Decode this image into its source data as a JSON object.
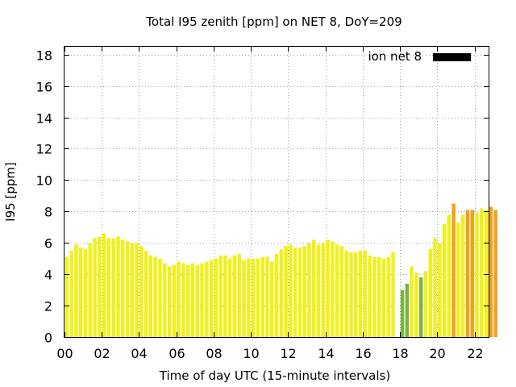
{
  "chart_data": {
    "type": "bar",
    "title": "Total I95 zenith [ppm] on NET 8, DoY=209",
    "xlabel": "Time of day UTC (15-minute intervals)",
    "ylabel": "I95 [ppm]",
    "xlim": [
      0,
      22.75
    ],
    "ylim": [
      0,
      18.5
    ],
    "x_ticks": [
      "00",
      "02",
      "04",
      "06",
      "08",
      "10",
      "12",
      "14",
      "16",
      "18",
      "20",
      "22"
    ],
    "y_ticks": [
      "0",
      "2",
      "4",
      "6",
      "8",
      "10",
      "12",
      "14",
      "16",
      "18"
    ],
    "grid": true,
    "legend": {
      "label": "ion net 8",
      "color": "#000000",
      "position": "top-right"
    },
    "bar_interval_hours": 0.25,
    "colors": {
      "low": "#7cb342",
      "mid": "#f0f020",
      "high": "#f2a11a"
    },
    "values": [
      5.1,
      5.5,
      5.9,
      5.7,
      5.6,
      6.0,
      6.3,
      6.4,
      6.6,
      6.3,
      6.3,
      6.4,
      6.2,
      6.1,
      6.0,
      6.0,
      5.8,
      5.5,
      5.2,
      5.1,
      5.0,
      4.7,
      4.5,
      4.6,
      4.8,
      4.7,
      4.6,
      4.7,
      4.6,
      4.7,
      4.8,
      4.9,
      5.0,
      5.2,
      5.2,
      5.0,
      5.2,
      5.3,
      4.9,
      5.0,
      5.0,
      5.0,
      5.1,
      5.1,
      4.8,
      5.3,
      5.6,
      5.8,
      5.9,
      5.7,
      5.7,
      5.8,
      6.0,
      6.2,
      5.9,
      6.0,
      6.2,
      6.1,
      5.9,
      5.8,
      5.5,
      5.4,
      5.4,
      5.5,
      5.5,
      5.2,
      5.1,
      5.1,
      5.0,
      5.1,
      5.4,
      0,
      3.0,
      3.4,
      4.5,
      4.1,
      3.8,
      4.2,
      5.6,
      6.3,
      6.0,
      7.2,
      7.8,
      8.5,
      7.3,
      7.8,
      8.1,
      8.1,
      7.9,
      8.2,
      8.1,
      8.3,
      8.1
    ],
    "bar_colors": [
      "mid",
      "mid",
      "mid",
      "mid",
      "mid",
      "mid",
      "mid",
      "mid",
      "mid",
      "mid",
      "mid",
      "mid",
      "mid",
      "mid",
      "mid",
      "mid",
      "mid",
      "mid",
      "mid",
      "mid",
      "mid",
      "mid",
      "mid",
      "mid",
      "mid",
      "mid",
      "mid",
      "mid",
      "mid",
      "mid",
      "mid",
      "mid",
      "mid",
      "mid",
      "mid",
      "mid",
      "mid",
      "mid",
      "mid",
      "mid",
      "mid",
      "mid",
      "mid",
      "mid",
      "mid",
      "mid",
      "mid",
      "mid",
      "mid",
      "mid",
      "mid",
      "mid",
      "mid",
      "mid",
      "mid",
      "mid",
      "mid",
      "mid",
      "mid",
      "mid",
      "mid",
      "mid",
      "mid",
      "mid",
      "mid",
      "mid",
      "mid",
      "mid",
      "mid",
      "mid",
      "mid",
      "mid",
      "low",
      "low",
      "mid",
      "mid",
      "low",
      "mid",
      "mid",
      "mid",
      "mid",
      "mid",
      "mid",
      "high",
      "mid",
      "mid",
      "high",
      "high",
      "mid",
      "mid",
      "mid",
      "high",
      "high"
    ]
  }
}
